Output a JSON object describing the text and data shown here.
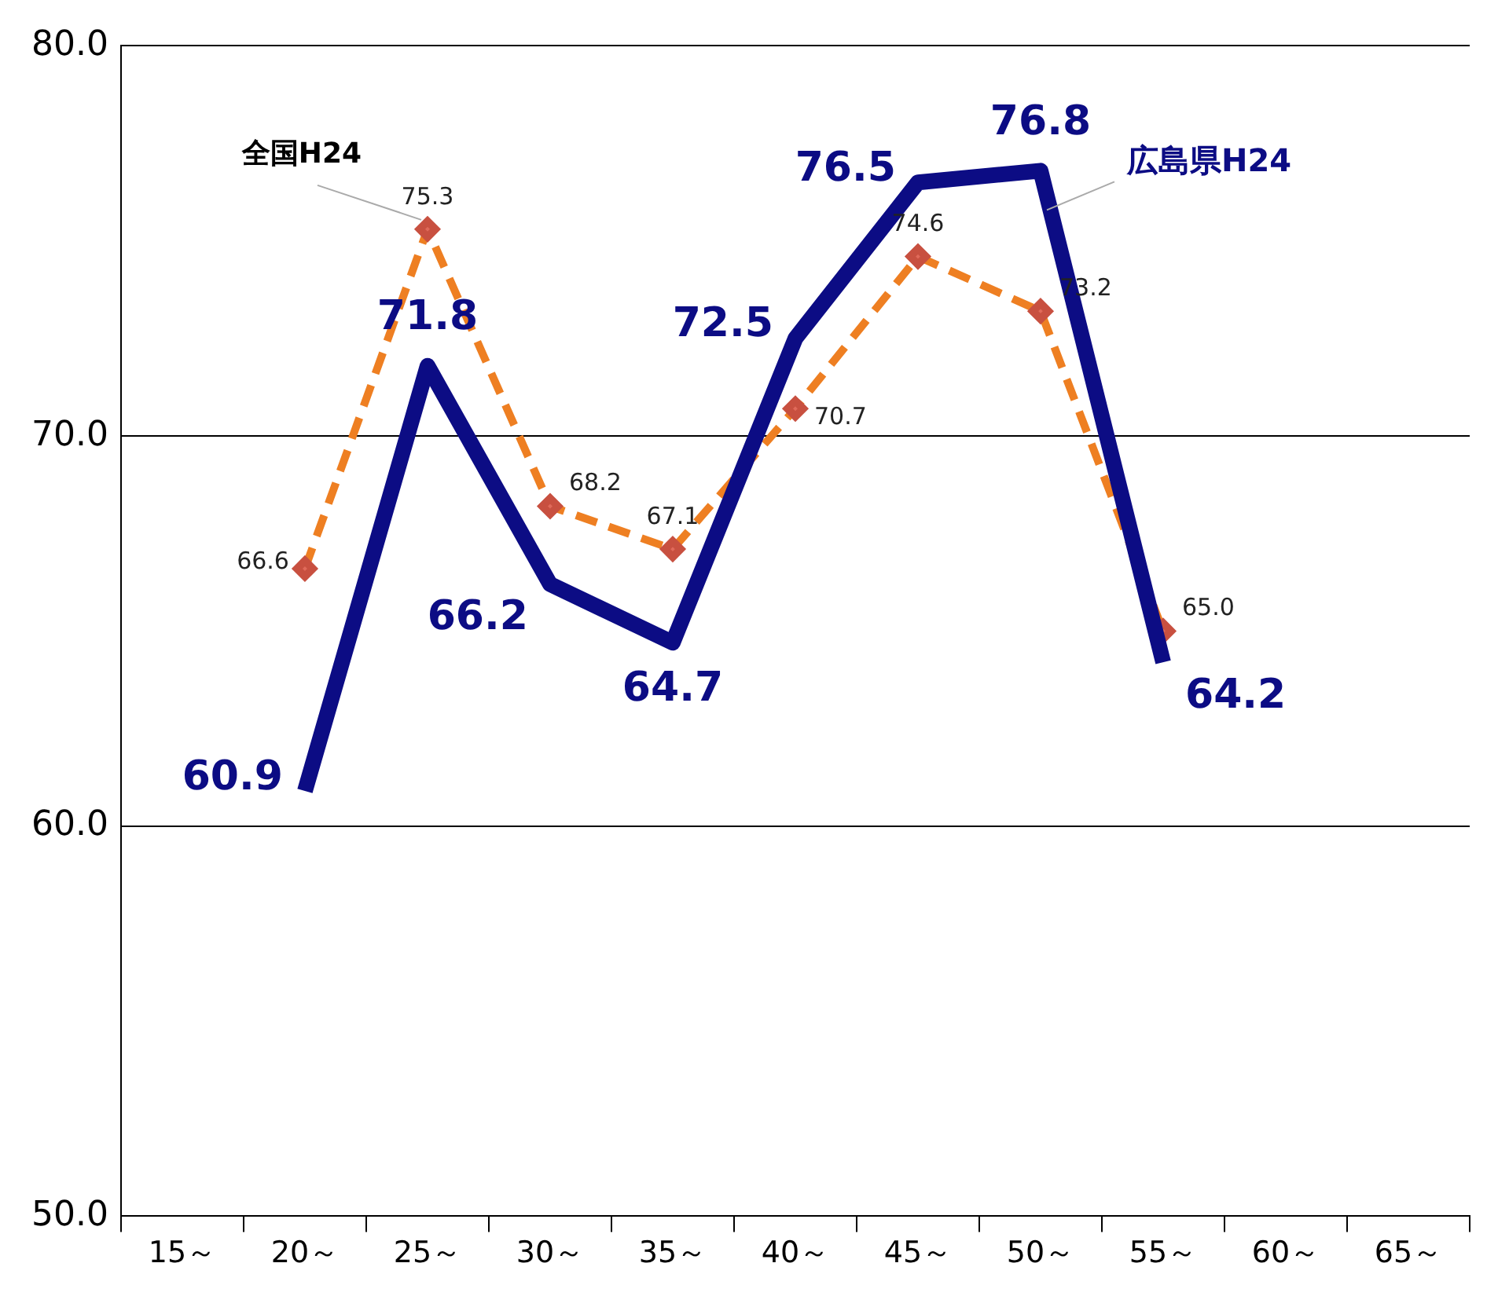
{
  "chart_data": {
    "type": "line",
    "categories": [
      "15～",
      "20～",
      "25～",
      "30～",
      "35～",
      "40～",
      "45～",
      "50～",
      "55～",
      "60～",
      "65～"
    ],
    "series": [
      {
        "name": "広島県H24",
        "color": "#0c0c84",
        "line_style": "solid",
        "marker": "none",
        "values": [
          null,
          60.9,
          71.8,
          66.2,
          64.7,
          72.5,
          76.5,
          76.8,
          64.2,
          null,
          null
        ],
        "value_labels": [
          null,
          "60.9",
          "71.8",
          "66.2",
          "64.7",
          "72.5",
          "76.5",
          "76.8",
          "64.2",
          null,
          null
        ]
      },
      {
        "name": "全国H24",
        "color": "#ee7f22",
        "line_style": "dashed",
        "marker": "diamond",
        "values": [
          null,
          66.6,
          75.3,
          68.2,
          67.1,
          70.7,
          74.6,
          73.2,
          65.0,
          null,
          null
        ],
        "value_labels": [
          null,
          "66.6",
          "75.3",
          "68.2",
          "67.1",
          "70.7",
          "74.6",
          "73.2",
          "65.0",
          null,
          null
        ]
      }
    ],
    "ylim": [
      50,
      80
    ],
    "yticks": [
      {
        "value": 50,
        "label": "50.0"
      },
      {
        "value": 60,
        "label": "60.0"
      },
      {
        "value": 70,
        "label": "70.0"
      },
      {
        "value": 80,
        "label": "80.0"
      }
    ],
    "grid": "y",
    "legend": false
  }
}
